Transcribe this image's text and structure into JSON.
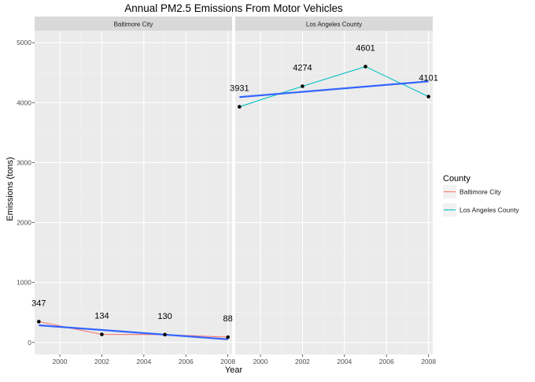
{
  "chart_data": {
    "type": "line",
    "title": "Annual PM2.5 Emissions From Motor Vehicles",
    "xlabel": "Year",
    "ylabel": "Emissions (tons)",
    "xlim": [
      1998.8,
      2008.2
    ],
    "ylim": [
      -200,
      5200
    ],
    "x_ticks": [
      2000,
      2002,
      2004,
      2006,
      2008
    ],
    "y_ticks": [
      0,
      1000,
      2000,
      3000,
      4000,
      5000
    ],
    "grid": true,
    "legend": {
      "title": "County",
      "position": "right",
      "entries": [
        "Baltimore City",
        "Los Angeles County"
      ]
    },
    "colors": {
      "Baltimore City": "#F8766D",
      "Los Angeles County": "#00BFC4",
      "trend": "#3366FF",
      "point": "#000000",
      "panel_bg": "#EBEBEB",
      "strip_bg": "#D9D9D9"
    },
    "panels": [
      {
        "name": "Baltimore City",
        "x": [
          1999,
          2002,
          2005,
          2008
        ],
        "values": [
          346.82,
          134.31,
          130.43,
          88.28
        ],
        "labels": [
          "347",
          "134",
          "130",
          "88"
        ],
        "trend": {
          "x": [
            1999,
            2008
          ],
          "y": [
            286,
            52
          ]
        }
      },
      {
        "name": "Los Angeles County",
        "x": [
          1999,
          2002,
          2005,
          2008
        ],
        "values": [
          3931.12,
          4273.71,
          4601.41,
          4101.32
        ],
        "labels": [
          "3931",
          "4274",
          "4601",
          "4101"
        ],
        "trend": {
          "x": [
            1999,
            2008
          ],
          "y": [
            4093,
            4355
          ]
        }
      }
    ]
  }
}
